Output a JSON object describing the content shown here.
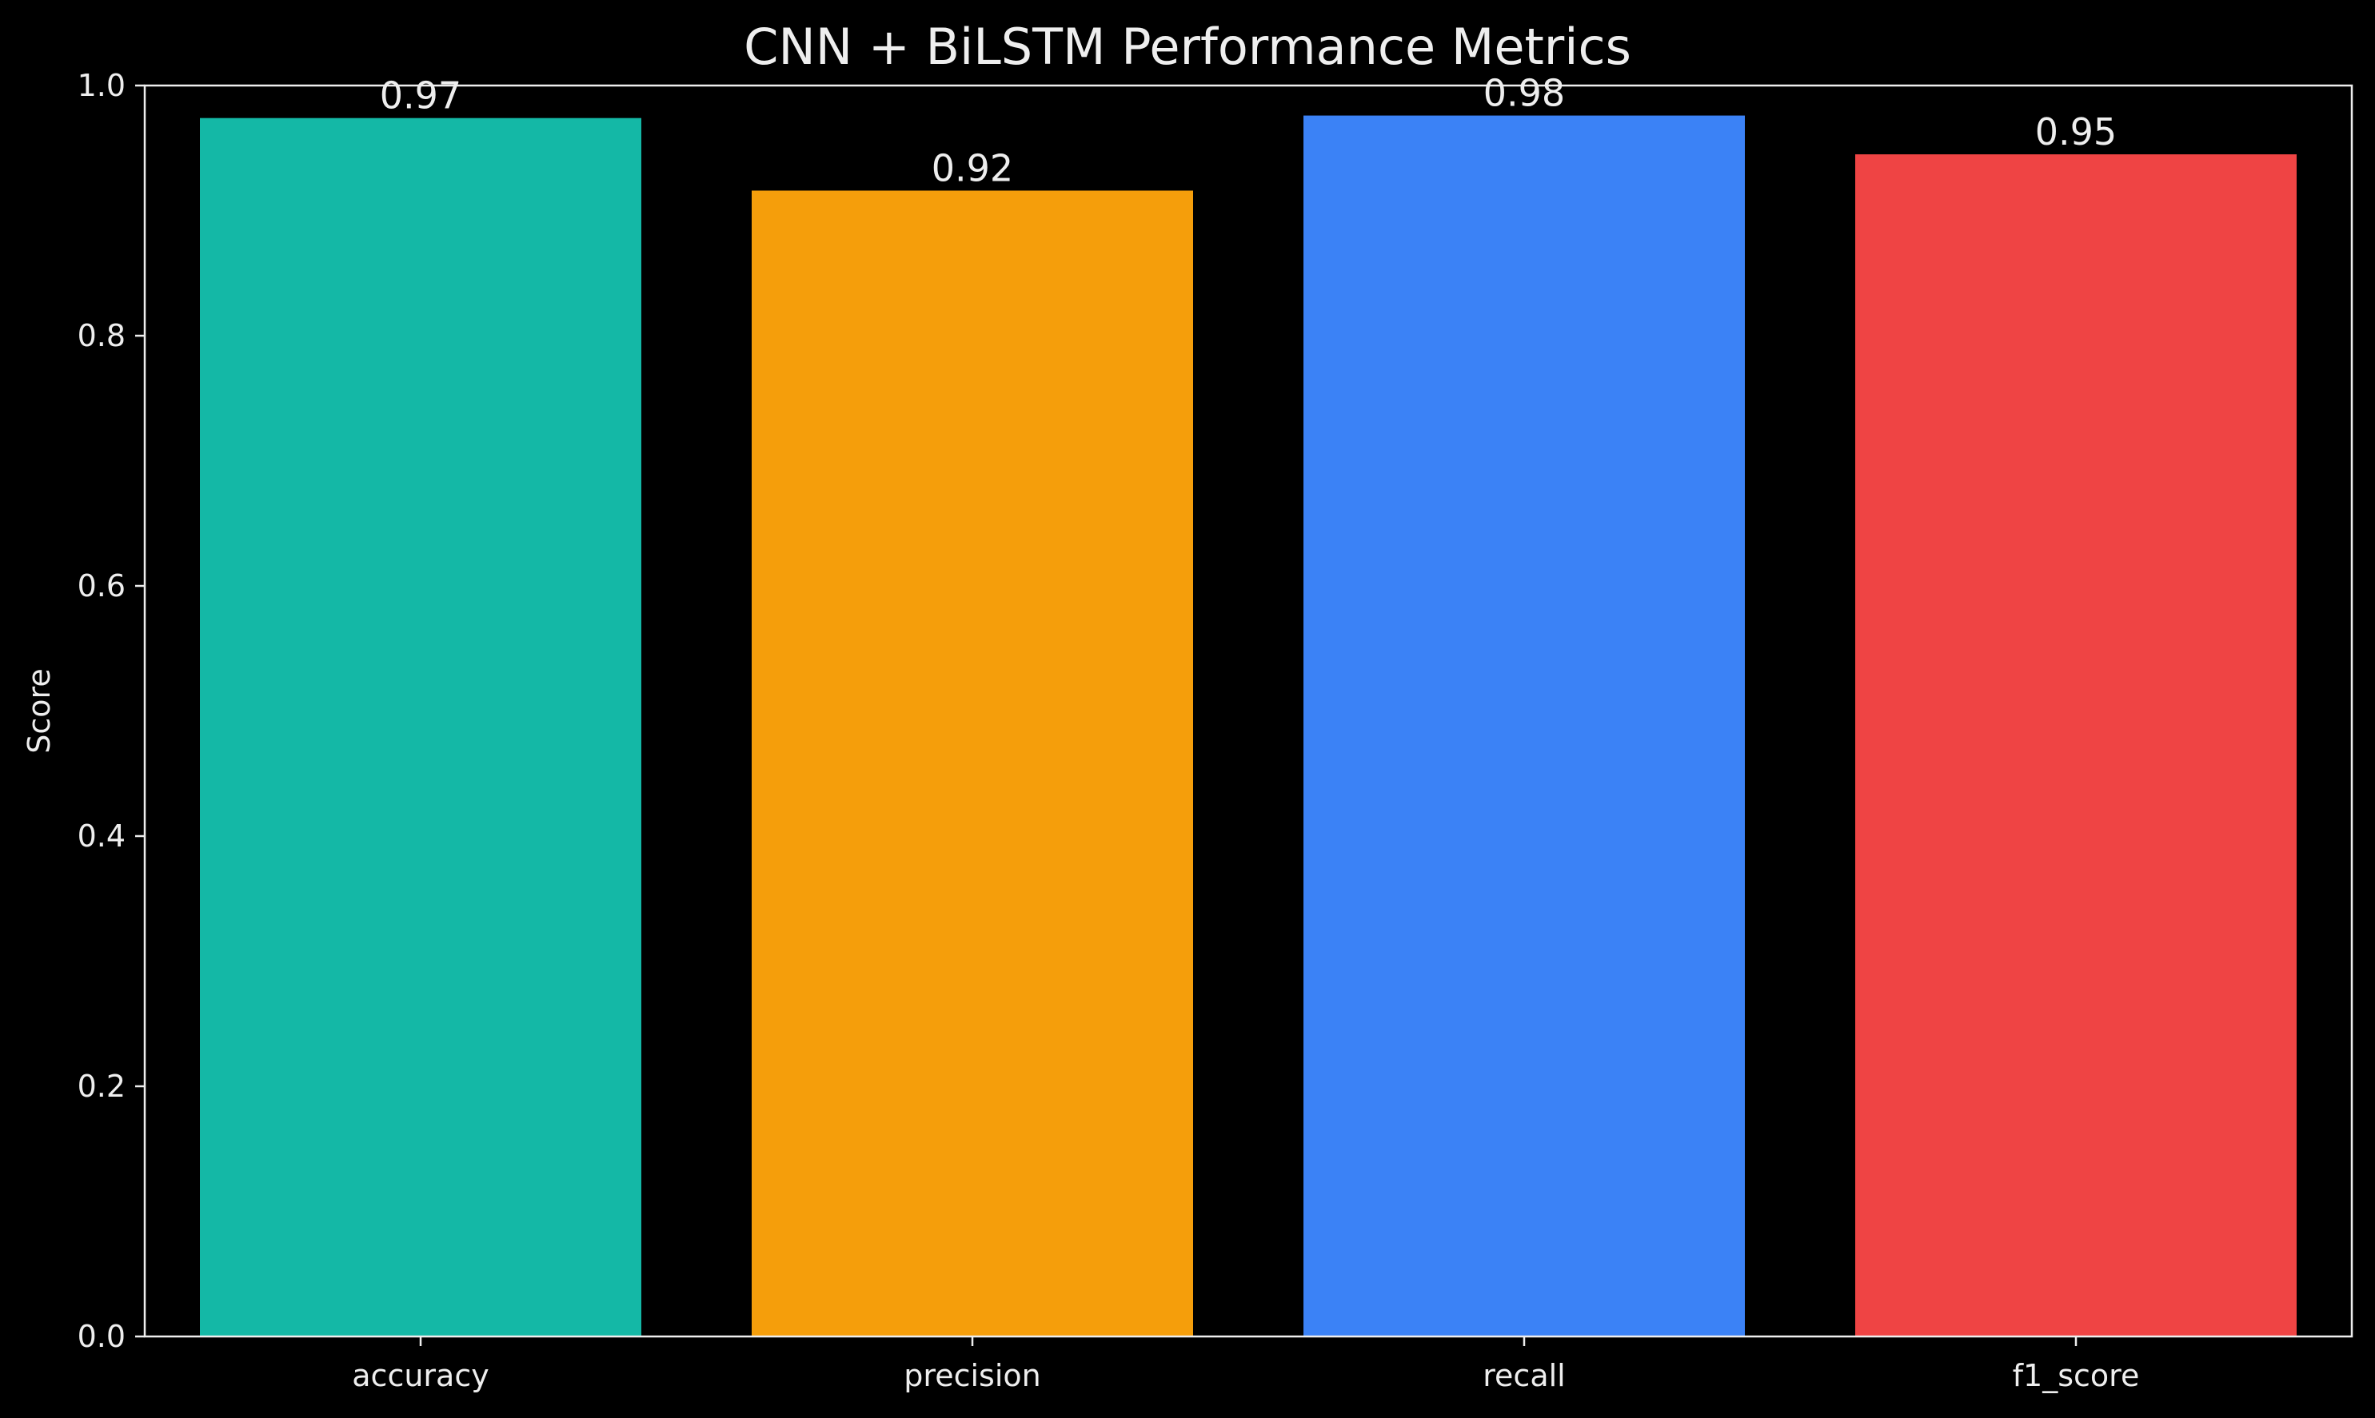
{
  "chart_data": {
    "type": "bar",
    "title": "CNN + BiLSTM Performance Metrics",
    "xlabel": "",
    "ylabel": "Score",
    "ylim": [
      0,
      1.0
    ],
    "yticks": [
      "0.0",
      "0.2",
      "0.4",
      "0.6",
      "0.8",
      "1.0"
    ],
    "categories": [
      "accuracy",
      "precision",
      "recall",
      "f1_score"
    ],
    "values": [
      0.974,
      0.916,
      0.976,
      0.945
    ],
    "value_labels": [
      "0.97",
      "0.92",
      "0.98",
      "0.95"
    ],
    "colors": [
      "#14b8a6",
      "#f59e0b",
      "#3b82f6",
      "#ef4444"
    ],
    "background": "#000000",
    "text_color": "#eeeeee",
    "grid": false,
    "legend": "none"
  }
}
